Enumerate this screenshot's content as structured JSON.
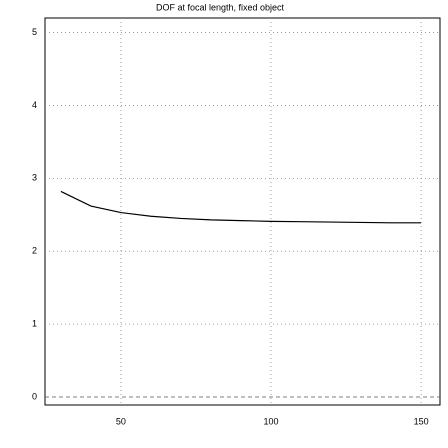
{
  "chart_data": {
    "type": "line",
    "title": "DOF at focal length, fixed object",
    "x": [
      30,
      40,
      50,
      60,
      70,
      80,
      90,
      100,
      110,
      120,
      130,
      140,
      150
    ],
    "series": [
      {
        "color": "#000000",
        "values": [
          2.82,
          2.62,
          2.53,
          2.48,
          2.45,
          2.43,
          2.42,
          2.41,
          2.405,
          2.4,
          2.395,
          2.39,
          2.39
        ]
      }
    ],
    "xlim": [
      24.7,
      156.3
    ],
    "ylim": [
      -0.11,
      5.2
    ],
    "xticks": [
      50,
      100,
      150
    ],
    "yticks": [
      0,
      1,
      2,
      3,
      4,
      5
    ],
    "grid": true
  }
}
